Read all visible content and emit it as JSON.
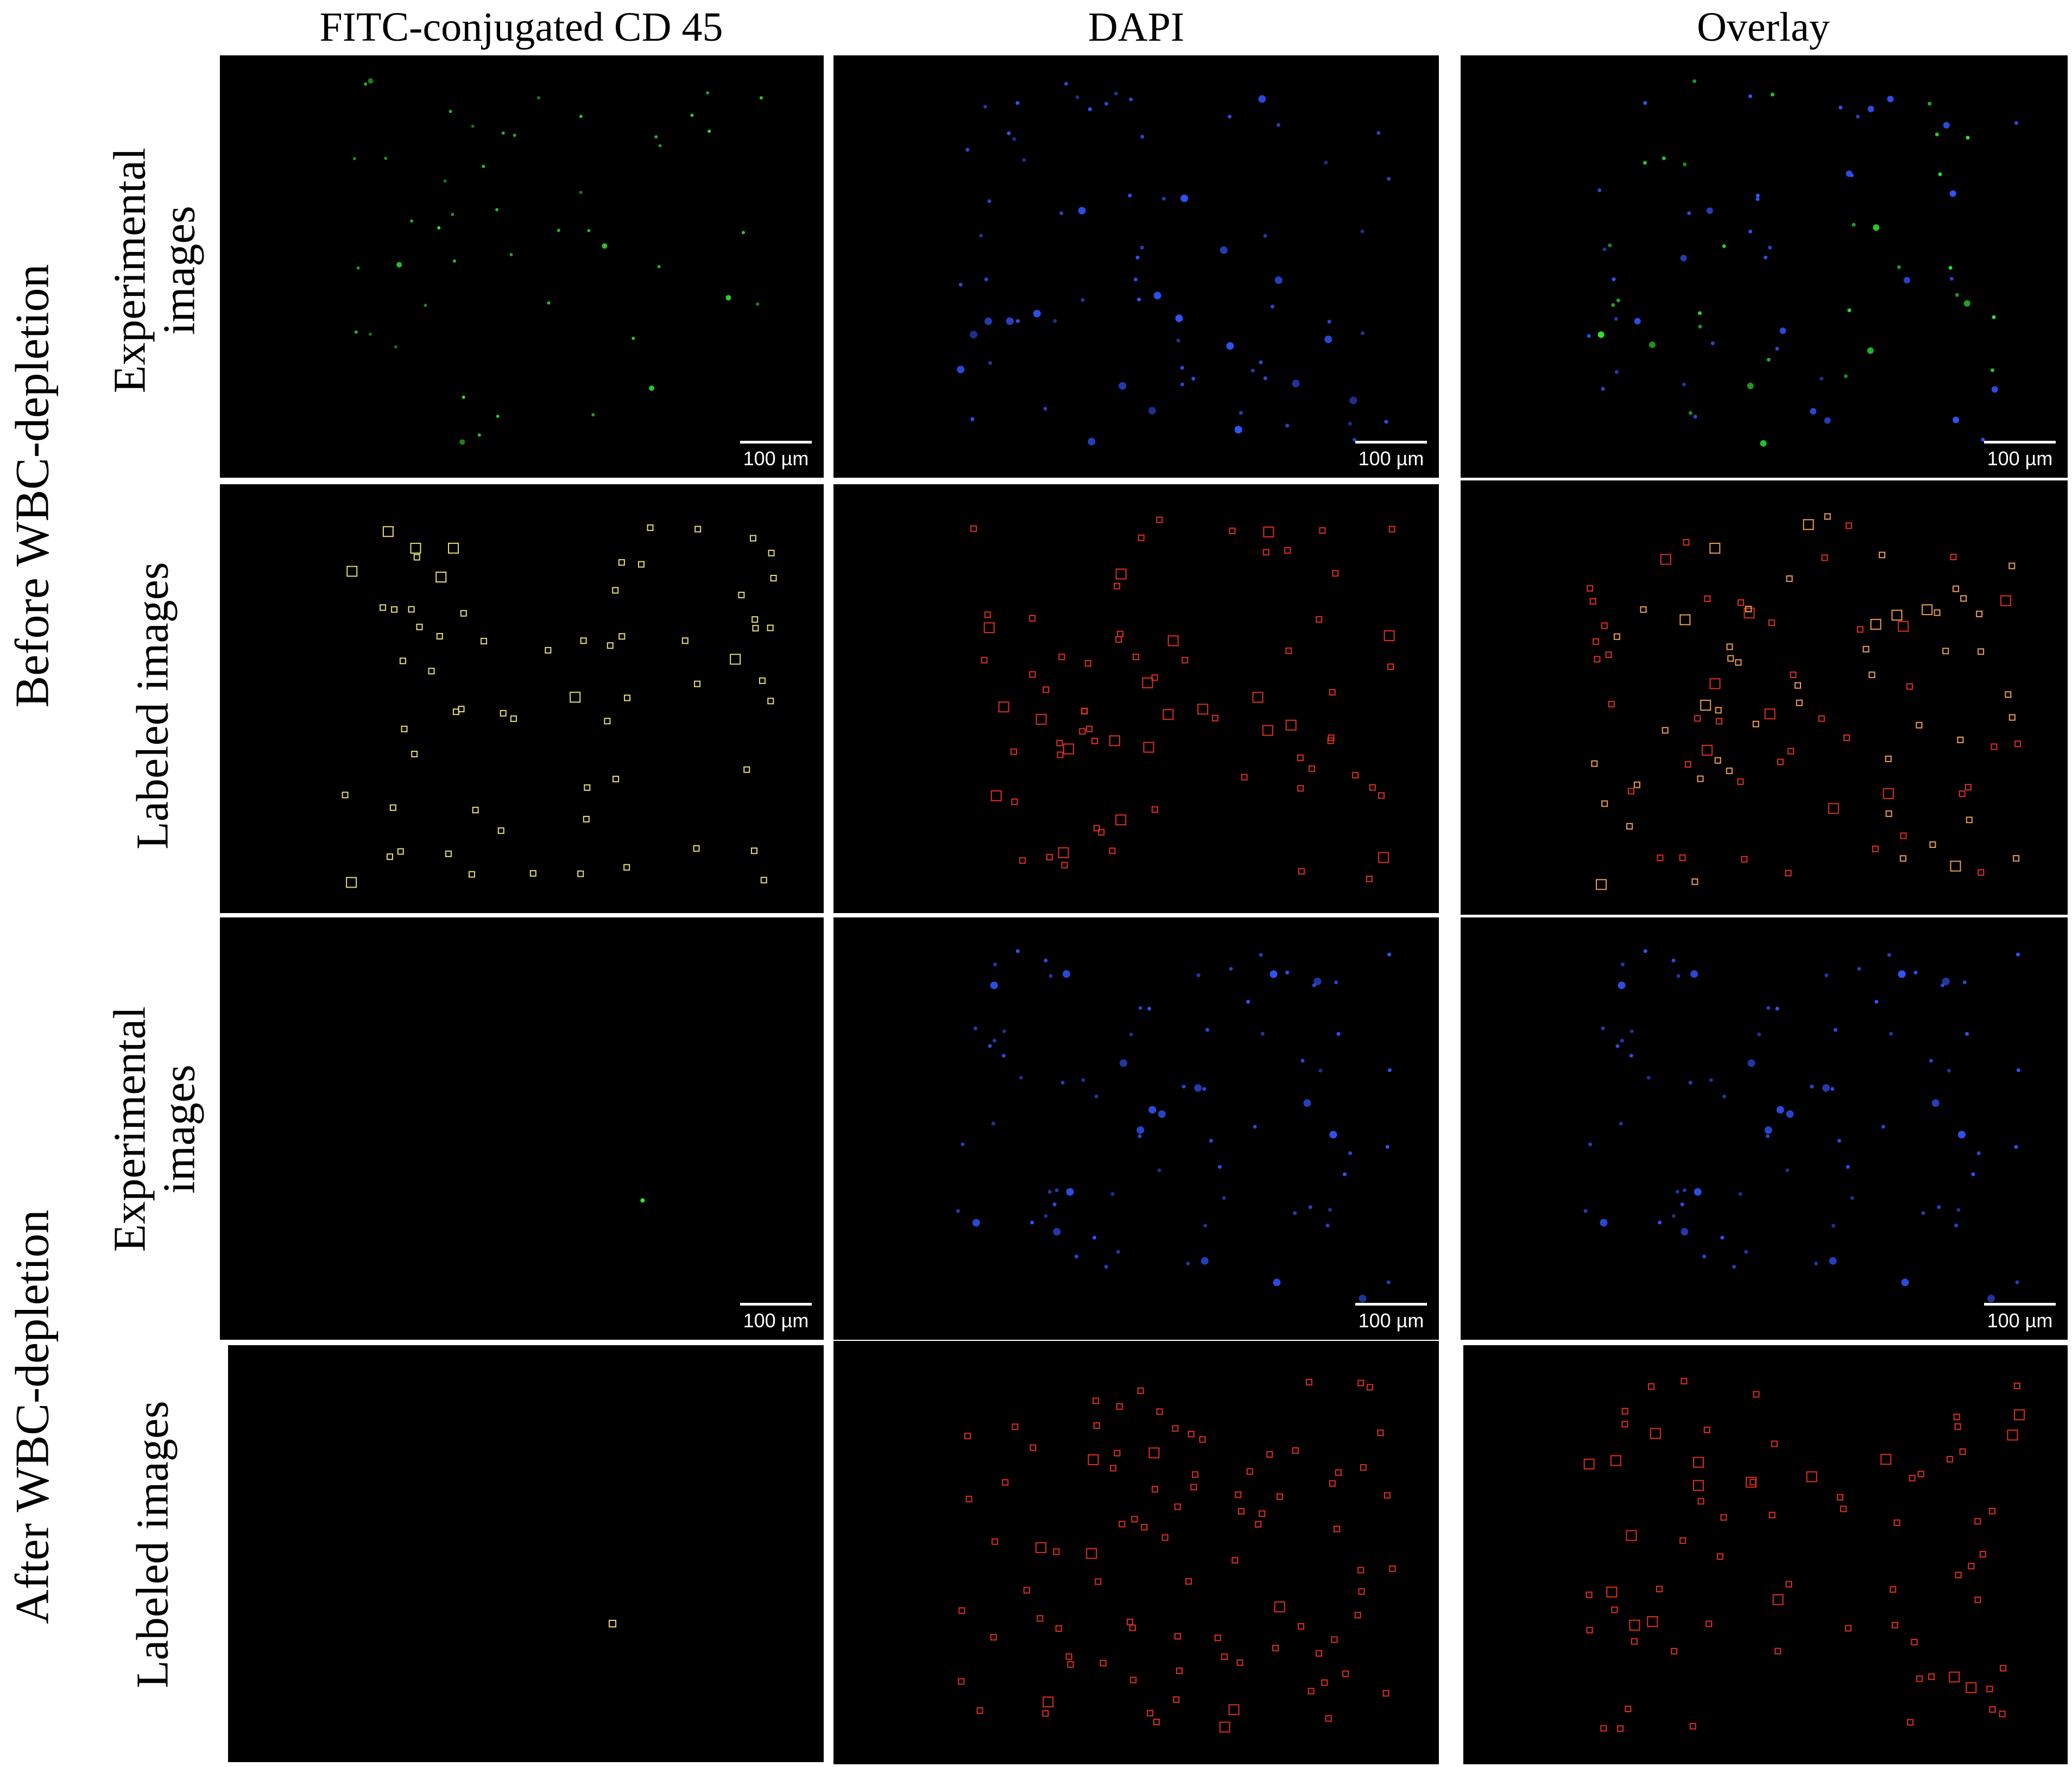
{
  "columns": [
    "FITC-conjugated CD 45",
    "DAPI",
    "Overlay"
  ],
  "groups": [
    "Before WBC-depletion",
    "After WBC-depletion"
  ],
  "row_labels": {
    "experimental": [
      "Experimental",
      "images"
    ],
    "labeled": "Labeled images"
  },
  "scale_bar": "100 µm",
  "colors": {
    "background": "#000000",
    "fitc_signal": "#2ee62e",
    "dapi_signal": "#3355ff",
    "fitc_label_box": "#e8e070",
    "dapi_label_box": "#e03020",
    "overlay_label_box": "#f0a050"
  },
  "panels": [
    {
      "row": "before-experimental",
      "column": "FITC-conjugated CD 45",
      "scale_bar_shown": true
    },
    {
      "row": "before-experimental",
      "column": "DAPI",
      "scale_bar_shown": true
    },
    {
      "row": "before-experimental",
      "column": "Overlay",
      "scale_bar_shown": true
    },
    {
      "row": "before-labeled",
      "column": "FITC-conjugated CD 45",
      "scale_bar_shown": false
    },
    {
      "row": "before-labeled",
      "column": "DAPI",
      "scale_bar_shown": false
    },
    {
      "row": "before-labeled",
      "column": "Overlay",
      "scale_bar_shown": false
    },
    {
      "row": "after-experimental",
      "column": "FITC-conjugated CD 45",
      "scale_bar_shown": true
    },
    {
      "row": "after-experimental",
      "column": "DAPI",
      "scale_bar_shown": true
    },
    {
      "row": "after-experimental",
      "column": "Overlay",
      "scale_bar_shown": true
    },
    {
      "row": "after-labeled",
      "column": "FITC-conjugated CD 45",
      "scale_bar_shown": false
    },
    {
      "row": "after-labeled",
      "column": "DAPI",
      "scale_bar_shown": false
    },
    {
      "row": "after-labeled",
      "column": "Overlay",
      "scale_bar_shown": false
    }
  ]
}
